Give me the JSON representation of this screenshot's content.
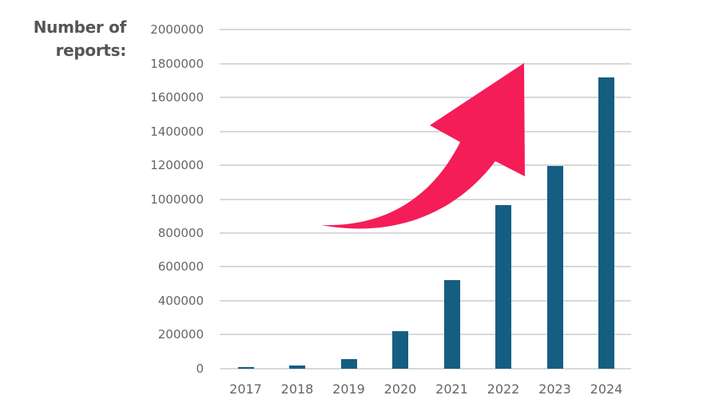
{
  "chart_data": {
    "type": "bar",
    "title": "",
    "ylabel": "Number of reports:",
    "ylabel_lines": [
      "Number of",
      "reports:"
    ],
    "xlabel": "",
    "categories": [
      "2017",
      "2018",
      "2019",
      "2020",
      "2021",
      "2022",
      "2023",
      "2024"
    ],
    "values": [
      7000,
      16000,
      54000,
      221000,
      523000,
      963000,
      1194000,
      1717000
    ],
    "ylim": [
      0,
      2000000
    ],
    "yticks": [
      "0",
      "200000",
      "400000",
      "600000",
      "800000",
      "1000000",
      "1200000",
      "1400000",
      "1600000",
      "1800000",
      "2000000"
    ],
    "grid": true,
    "legend": null,
    "bar_color": "#155e82",
    "annotations": [
      {
        "type": "curved-arrow",
        "direction": "up-right",
        "color": "#f41d58"
      }
    ]
  }
}
